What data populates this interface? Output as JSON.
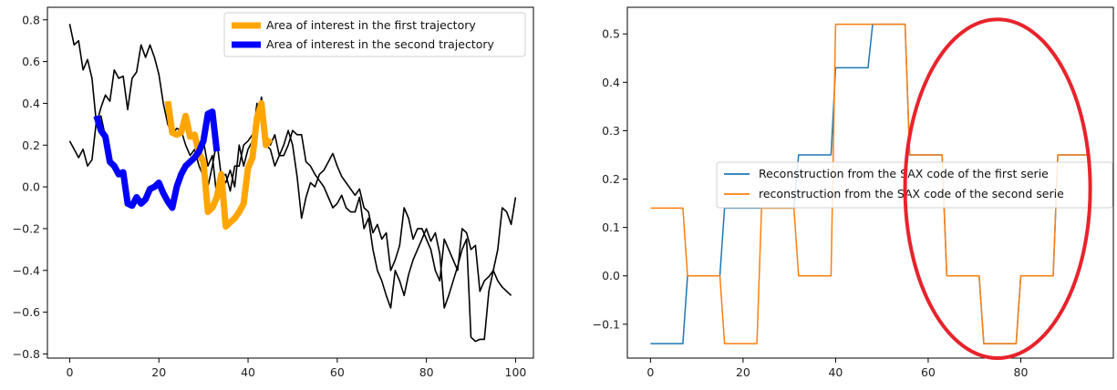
{
  "chart_data": [
    {
      "type": "line",
      "title": "",
      "xlabel": "",
      "ylabel": "",
      "xlim": [
        -5,
        104
      ],
      "ylim": [
        -0.82,
        0.86
      ],
      "xticks": [
        0,
        20,
        40,
        60,
        80,
        100
      ],
      "yticks": [
        -0.8,
        -0.6,
        -0.4,
        -0.2,
        0.0,
        0.2,
        0.4,
        0.6,
        0.8
      ],
      "xtick_labels": [
        "0",
        "20",
        "40",
        "60",
        "80",
        "100"
      ],
      "ytick_labels": [
        "−0.8",
        "−0.6",
        "−0.4",
        "−0.2",
        "0.0",
        "0.2",
        "0.4",
        "0.6",
        "0.8"
      ],
      "grid": false,
      "legend_position": "top-right",
      "series": [
        {
          "legend": false,
          "color": "#000000",
          "width": 1.6,
          "x_start": 0,
          "values": [
            0.78,
            0.68,
            0.7,
            0.56,
            0.61,
            0.52,
            0.3,
            0.38,
            0.44,
            0.41,
            0.56,
            0.52,
            0.53,
            0.37,
            0.52,
            0.55,
            0.68,
            0.62,
            0.68,
            0.62,
            0.54,
            0.4,
            0.3,
            0.25,
            0.28,
            0.27,
            0.2,
            0.15,
            0.18,
            0.1,
            0.05,
            0.0,
            0.1,
            0.22,
            0.05,
            0.06,
            -0.02,
            0.1,
            0.1,
            0.2,
            0.22,
            0.25,
            0.25,
            0.43,
            0.25,
            0.2,
            0.25,
            0.15,
            0.15,
            0.2,
            0.27,
            0.25,
            0.25,
            0.12,
            0.1,
            0.06,
            0.03,
            0.0,
            -0.05,
            -0.1,
            -0.08,
            -0.04,
            -0.1,
            -0.12,
            -0.12,
            -0.05,
            -0.2,
            -0.15,
            -0.3,
            -0.4,
            -0.45,
            -0.52,
            -0.58,
            -0.4,
            -0.45,
            -0.52,
            -0.42,
            -0.35,
            -0.3,
            -0.25,
            -0.2,
            -0.26,
            -0.22,
            -0.32,
            -0.58,
            -0.52,
            -0.45,
            -0.38,
            -0.3,
            -0.25,
            -0.72,
            -0.74,
            -0.73,
            -0.73,
            -0.5,
            -0.4,
            -0.3,
            -0.1,
            -0.12,
            -0.18,
            -0.05
          ]
        },
        {
          "legend": false,
          "color": "#000000",
          "width": 1.6,
          "x_start": 0,
          "values": [
            0.22,
            0.18,
            0.14,
            0.18,
            0.1,
            0.13,
            0.32,
            0.34,
            0.24,
            0.12,
            0.1,
            0.07,
            0.07,
            -0.08,
            -0.09,
            -0.05,
            -0.08,
            -0.06,
            -0.01,
            0.0,
            0.02,
            -0.03,
            -0.07,
            -0.1,
            0.0,
            0.06,
            0.1,
            0.12,
            0.14,
            0.17,
            0.22,
            0.1,
            0.15,
            -0.05,
            0.05,
            0.02,
            0.08,
            0.0,
            0.2,
            0.1,
            0.18,
            0.22,
            0.4,
            0.35,
            0.2,
            0.18,
            0.1,
            0.15,
            0.2,
            0.27,
            0.2,
            0.05,
            -0.15,
            -0.05,
            0.02,
            0.0,
            0.06,
            0.08,
            0.12,
            0.16,
            0.1,
            0.05,
            0.02,
            -0.01,
            -0.04,
            -0.01,
            -0.1,
            -0.12,
            -0.22,
            -0.18,
            -0.25,
            -0.22,
            -0.4,
            -0.35,
            -0.28,
            -0.1,
            -0.15,
            -0.25,
            -0.2,
            -0.2,
            -0.25,
            -0.3,
            -0.4,
            -0.45,
            -0.25,
            -0.3,
            -0.35,
            -0.4,
            -0.2,
            -0.22,
            -0.3,
            -0.28,
            -0.5,
            -0.45,
            -0.43,
            -0.4,
            -0.45,
            -0.48,
            -0.5,
            -0.52
          ]
        },
        {
          "name": "Area of interest in the first trajectory",
          "legend": true,
          "color": "#ffa500",
          "width": 7,
          "x": [
            22,
            23,
            24,
            25,
            26,
            27,
            28,
            29,
            30,
            31,
            32,
            33,
            34,
            35,
            36,
            37,
            38,
            39,
            40,
            41,
            42,
            43,
            44,
            45
          ],
          "values": [
            0.41,
            0.26,
            0.25,
            0.26,
            0.34,
            0.24,
            0.25,
            0.16,
            0.12,
            -0.12,
            -0.1,
            -0.05,
            0.06,
            -0.19,
            -0.17,
            -0.15,
            -0.12,
            -0.08,
            0.09,
            0.14,
            0.33,
            0.4,
            0.2,
            0.23
          ]
        },
        {
          "name": "Area of interest in the second trajectory",
          "legend": true,
          "color": "#0000ff",
          "width": 7,
          "x": [
            6,
            7,
            8,
            9,
            10,
            11,
            12,
            13,
            14,
            15,
            16,
            17,
            18,
            19,
            20,
            21,
            22,
            23,
            24,
            25,
            26,
            27,
            28,
            29,
            30,
            31,
            32,
            33
          ],
          "values": [
            0.34,
            0.27,
            0.24,
            0.12,
            0.1,
            0.06,
            0.07,
            -0.08,
            -0.09,
            -0.05,
            -0.08,
            -0.06,
            -0.01,
            0.0,
            0.02,
            -0.03,
            -0.07,
            -0.1,
            0.0,
            0.06,
            0.1,
            0.12,
            0.14,
            0.17,
            0.22,
            0.35,
            0.36,
            0.17
          ]
        }
      ]
    },
    {
      "type": "line",
      "title": "",
      "xlabel": "",
      "ylabel": "",
      "xlim": [
        -5,
        100
      ],
      "ylim": [
        -0.17,
        0.555
      ],
      "xticks": [
        0,
        20,
        40,
        60,
        80
      ],
      "yticks": [
        -0.1,
        0.0,
        0.1,
        0.2,
        0.3,
        0.4,
        0.5
      ],
      "xtick_labels": [
        "0",
        "20",
        "40",
        "60",
        "80"
      ],
      "ytick_labels": [
        "−0.1",
        "0.0",
        "0.1",
        "0.2",
        "0.3",
        "0.4",
        "0.5"
      ],
      "grid": false,
      "legend_position": "center-right",
      "annotation": "red ellipse highlighting x range 50-95",
      "series": [
        {
          "name": "Reconstruction from the SAX code of the first serie",
          "color": "#1f77b4",
          "width": 1.5,
          "x": [
            0,
            7,
            8,
            15,
            16,
            23,
            24,
            31,
            32,
            39,
            40,
            47,
            48,
            55,
            56,
            63,
            64,
            71,
            72,
            79,
            80,
            87,
            88,
            95
          ],
          "values": [
            -0.14,
            -0.14,
            0.0,
            0.0,
            0.14,
            0.14,
            0.14,
            0.14,
            0.25,
            0.25,
            0.43,
            0.43,
            0.52,
            0.52,
            0.25,
            0.25,
            0.0,
            0.0,
            -0.14,
            -0.14,
            0.0,
            0.0,
            0.25,
            0.25
          ]
        },
        {
          "name": "reconstruction from the SAX code of the second serie",
          "color": "#ff7f0e",
          "width": 1.5,
          "x": [
            0,
            7,
            8,
            15,
            16,
            23,
            24,
            31,
            32,
            39,
            40,
            47,
            48,
            55,
            56,
            63,
            64,
            71,
            72,
            79,
            80,
            87,
            88,
            95
          ],
          "values": [
            0.14,
            0.14,
            0.0,
            0.0,
            -0.14,
            -0.14,
            0.14,
            0.14,
            0.0,
            0.0,
            0.52,
            0.52,
            0.52,
            0.52,
            0.25,
            0.25,
            0.0,
            0.0,
            -0.14,
            -0.14,
            0.0,
            0.0,
            0.25,
            0.25
          ]
        }
      ],
      "highlight": {
        "color": "#e8232b",
        "x_center": 75,
        "y_center": 0.18,
        "x_radius": 20,
        "y_radius": 0.35
      }
    }
  ]
}
